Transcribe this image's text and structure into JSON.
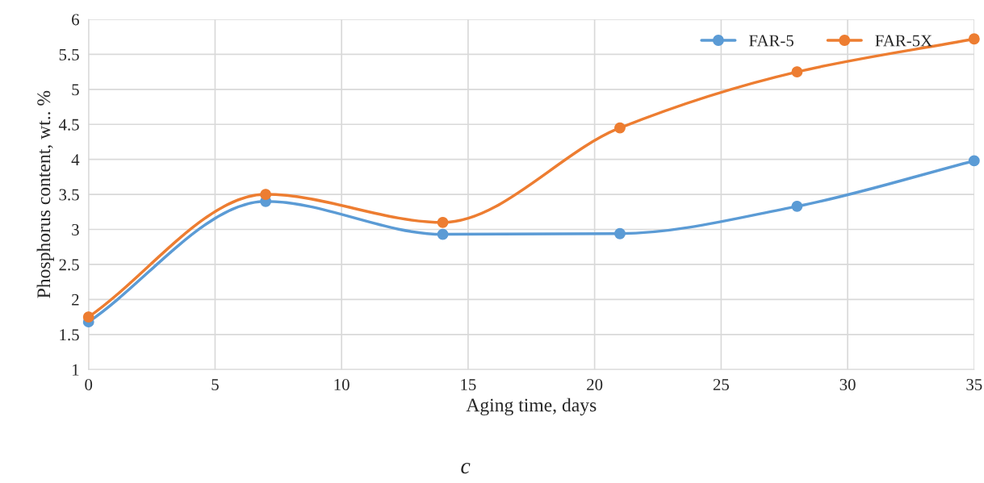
{
  "chart_data": {
    "type": "line",
    "xlabel": "Aging time, days",
    "ylabel": "Phosphorus content, wt.. %",
    "x": [
      0,
      7,
      14,
      21,
      28,
      35
    ],
    "series": [
      {
        "name": "FAR-5",
        "color": "#5b9bd5",
        "values": [
          1.68,
          3.4,
          2.93,
          2.94,
          3.33,
          3.98
        ]
      },
      {
        "name": "FAR-5X",
        "color": "#ed7d31",
        "values": [
          1.75,
          3.5,
          3.1,
          4.45,
          5.25,
          5.72
        ]
      }
    ],
    "xlim": [
      0,
      35
    ],
    "xticks": [
      0,
      5,
      10,
      15,
      20,
      25,
      30,
      35
    ],
    "ylim": [
      1,
      6
    ],
    "yticks": [
      1,
      1.5,
      2,
      2.5,
      3,
      3.5,
      4,
      4.5,
      5,
      5.5,
      6
    ],
    "grid": true,
    "legend": "top right",
    "marker": "circle",
    "line_style": "solid",
    "annotations": [
      "c"
    ]
  }
}
